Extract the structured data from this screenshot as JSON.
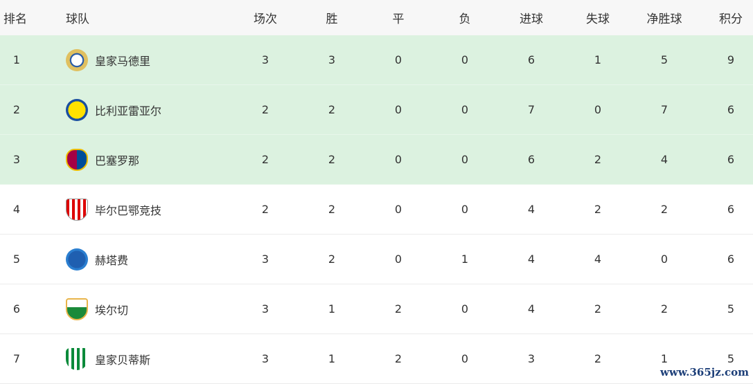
{
  "headers": {
    "rank": "排名",
    "team": "球队",
    "played": "场次",
    "won": "胜",
    "drawn": "平",
    "lost": "负",
    "gf": "进球",
    "ga": "失球",
    "gd": "净胜球",
    "pts": "积分"
  },
  "highlight_color": "#dcf2e0",
  "rows": [
    {
      "rank": "1",
      "team": "皇家马德里",
      "logo": "real-madrid-crest",
      "played": "3",
      "won": "3",
      "drawn": "0",
      "lost": "0",
      "gf": "6",
      "ga": "1",
      "gd": "5",
      "pts": "9"
    },
    {
      "rank": "2",
      "team": "比利亚雷亚尔",
      "logo": "villarreal-crest",
      "played": "2",
      "won": "2",
      "drawn": "0",
      "lost": "0",
      "gf": "7",
      "ga": "0",
      "gd": "7",
      "pts": "6"
    },
    {
      "rank": "3",
      "team": "巴塞罗那",
      "logo": "barcelona-crest",
      "played": "2",
      "won": "2",
      "drawn": "0",
      "lost": "0",
      "gf": "6",
      "ga": "2",
      "gd": "4",
      "pts": "6"
    },
    {
      "rank": "4",
      "team": "毕尔巴鄂竞技",
      "logo": "athletic-bilbao-crest",
      "played": "2",
      "won": "2",
      "drawn": "0",
      "lost": "0",
      "gf": "4",
      "ga": "2",
      "gd": "2",
      "pts": "6"
    },
    {
      "rank": "5",
      "team": "赫塔费",
      "logo": "getafe-crest",
      "played": "3",
      "won": "2",
      "drawn": "0",
      "lost": "1",
      "gf": "4",
      "ga": "4",
      "gd": "0",
      "pts": "6"
    },
    {
      "rank": "6",
      "team": "埃尔切",
      "logo": "elche-crest",
      "played": "3",
      "won": "1",
      "drawn": "2",
      "lost": "0",
      "gf": "4",
      "ga": "2",
      "gd": "2",
      "pts": "5"
    },
    {
      "rank": "7",
      "team": "皇家贝蒂斯",
      "logo": "real-betis-crest",
      "played": "3",
      "won": "1",
      "drawn": "2",
      "lost": "0",
      "gf": "3",
      "ga": "2",
      "gd": "1",
      "pts": "5"
    }
  ],
  "watermark": "www.365jz.com"
}
